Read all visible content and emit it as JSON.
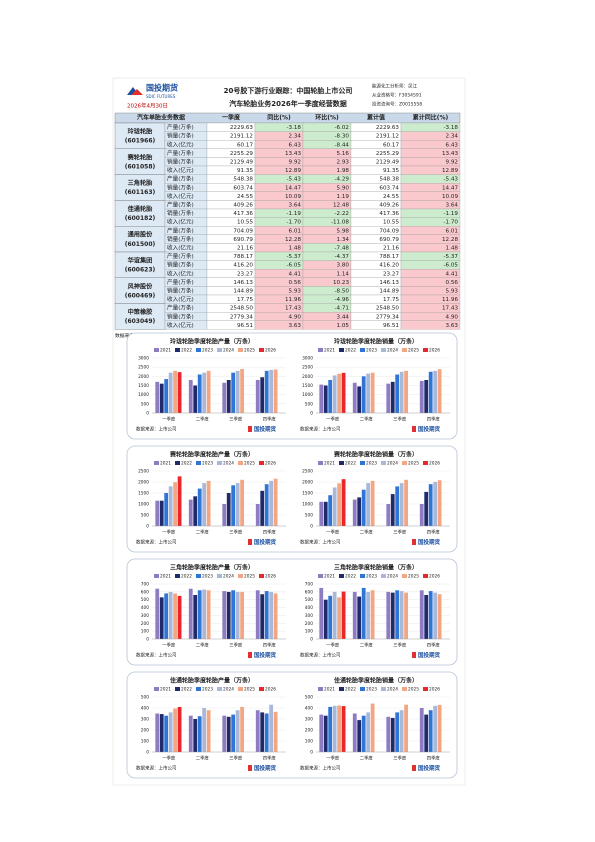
{
  "header": {
    "logo": "国投期货",
    "logo_en": "SDIC FUTURES",
    "date": "2026年4月30日",
    "title": "20号胶下游行业跟踪：中国轮胎上市公司",
    "subtitle": "汽车轮胎业务2026年一季度经营数据",
    "analyst": [
      "能源化工分析师：吴江",
      "从业资格号：F3054591",
      "投资咨询号：Z0015558"
    ]
  },
  "table": {
    "columns": [
      "汽车单胎业务数据",
      "一季度",
      "同比(%)",
      "环比(%)",
      "累计值",
      "累计同比(%)"
    ],
    "companies": [
      {
        "name": "玲珑轮胎",
        "code": "(601966)",
        "rows": [
          [
            "产量(万条)",
            "2229.63",
            "-3.18",
            "-6.02",
            "2229.63",
            "-3.18"
          ],
          [
            "销量(万条)",
            "2191.12",
            "2.34",
            "-8.30",
            "2191.12",
            "2.34"
          ],
          [
            "收入(亿元)",
            "60.17",
            "6.43",
            "-8.44",
            "60.17",
            "6.43"
          ]
        ]
      },
      {
        "name": "赛轮轮胎",
        "code": "(601058)",
        "rows": [
          [
            "产量(万条)",
            "2255.29",
            "13.43",
            "5.16",
            "2255.29",
            "13.43"
          ],
          [
            "销量(万条)",
            "2129.49",
            "9.92",
            "2.93",
            "2129.49",
            "9.92"
          ],
          [
            "收入(亿元)",
            "91.35",
            "12.89",
            "1.98",
            "91.35",
            "12.89"
          ]
        ]
      },
      {
        "name": "三角轮胎",
        "code": "(601163)",
        "rows": [
          [
            "产量(万条)",
            "548.38",
            "-5.43",
            "-4.29",
            "548.38",
            "-5.43"
          ],
          [
            "销量(万条)",
            "603.74",
            "14.47",
            "5.90",
            "603.74",
            "14.47"
          ],
          [
            "收入(亿元)",
            "24.55",
            "10.09",
            "1.19",
            "24.55",
            "10.09"
          ]
        ]
      },
      {
        "name": "佳通轮胎",
        "code": "(600182)",
        "rows": [
          [
            "产量(万条)",
            "409.26",
            "3.64",
            "12.48",
            "409.26",
            "3.64"
          ],
          [
            "销量(万条)",
            "417.36",
            "-1.19",
            "-2.22",
            "417.36",
            "-1.19"
          ],
          [
            "收入(亿元)",
            "10.55",
            "-1.70",
            "-11.08",
            "10.55",
            "-1.70"
          ]
        ]
      },
      {
        "name": "通用股份",
        "code": "(601500)",
        "rows": [
          [
            "产量(万条)",
            "704.09",
            "6.01",
            "5.98",
            "704.09",
            "6.01"
          ],
          [
            "销量(万条)",
            "690.79",
            "12.28",
            "1.34",
            "690.79",
            "12.28"
          ],
          [
            "收入(亿元)",
            "21.16",
            "1.48",
            "-7.48",
            "21.16",
            "1.48"
          ]
        ]
      },
      {
        "name": "华谊集团",
        "code": "(600623)",
        "rows": [
          [
            "产量(万条)",
            "788.17",
            "-5.37",
            "-4.37",
            "788.17",
            "-5.37"
          ],
          [
            "销量(万条)",
            "416.20",
            "-6.05",
            "3.80",
            "416.20",
            "-6.05"
          ],
          [
            "收入(亿元)",
            "23.27",
            "4.41",
            "1.14",
            "23.27",
            "4.41"
          ]
        ]
      },
      {
        "name": "风神股份",
        "code": "(600469)",
        "rows": [
          [
            "产量(万条)",
            "146.13",
            "0.56",
            "10.23",
            "146.13",
            "0.56"
          ],
          [
            "销量(万条)",
            "144.89",
            "5.93",
            "-8.50",
            "144.89",
            "5.93"
          ],
          [
            "收入(亿元)",
            "17.75",
            "11.96",
            "-4.96",
            "17.75",
            "11.96"
          ]
        ]
      },
      {
        "name": "中策橡胶",
        "code": "(603049)",
        "rows": [
          [
            "产量(万条)",
            "2548.50",
            "17.43",
            "-4.71",
            "2548.50",
            "17.43"
          ],
          [
            "销量(万条)",
            "2779.34",
            "4.90",
            "3.44",
            "2779.34",
            "4.90"
          ],
          [
            "收入(亿元)",
            "96.51",
            "3.63",
            "1.05",
            "96.51",
            "3.63"
          ]
        ]
      }
    ],
    "source": "数据来源：公司公告，国投期货"
  },
  "charts": [
    {
      "title": "玲珑轮胎季度轮胎产量（万条）",
      "categories": [
        "一季度",
        "二季度",
        "三季度",
        "四季度"
      ],
      "ylim": [
        0,
        3000
      ],
      "yticks": [
        0,
        500,
        1000,
        1500,
        2000,
        2500,
        3000
      ],
      "series": [
        {
          "name": "2021",
          "color": "#8e7cc3",
          "values": [
            1700,
            1800,
            1650,
            1800
          ]
        },
        {
          "name": "2022",
          "color": "#1f2a6b",
          "values": [
            1600,
            1500,
            1800,
            1950
          ]
        },
        {
          "name": "2023",
          "color": "#2e75d6",
          "values": [
            1850,
            2100,
            2200,
            2300
          ]
        },
        {
          "name": "2024",
          "color": "#a9b8d9",
          "values": [
            2200,
            2200,
            2300,
            2350
          ]
        },
        {
          "name": "2025",
          "color": "#f4a582",
          "values": [
            2300,
            2300,
            2400,
            2370
          ]
        },
        {
          "name": "2026",
          "color": "#e8262b",
          "values": [
            2229.63,
            null,
            null,
            null
          ]
        }
      ],
      "source": "数据来源：上市公司",
      "logo": "国投期货"
    },
    {
      "title": "玲珑轮胎季度轮胎销量（万条）",
      "categories": [
        "一季度",
        "二季度",
        "三季度",
        "四季度"
      ],
      "ylim": [
        0,
        3000
      ],
      "yticks": [
        0,
        500,
        1000,
        1500,
        2000,
        2500,
        3000
      ],
      "series": [
        {
          "name": "2021",
          "color": "#8e7cc3",
          "values": [
            1550,
            1650,
            1600,
            1750
          ]
        },
        {
          "name": "2022",
          "color": "#1f2a6b",
          "values": [
            1500,
            1450,
            1700,
            1800
          ]
        },
        {
          "name": "2023",
          "color": "#2e75d6",
          "values": [
            1800,
            2000,
            2100,
            2250
          ]
        },
        {
          "name": "2024",
          "color": "#a9b8d9",
          "values": [
            2050,
            2150,
            2250,
            2300
          ]
        },
        {
          "name": "2025",
          "color": "#f4a582",
          "values": [
            2140,
            2200,
            2300,
            2390
          ]
        },
        {
          "name": "2026",
          "color": "#e8262b",
          "values": [
            2191.12,
            null,
            null,
            null
          ]
        }
      ],
      "source": "数据来源：上市公司",
      "logo": "国投期货"
    },
    {
      "title": "赛轮轮胎季度轮胎产量（万条）",
      "categories": [
        "一季度",
        "二季度",
        "三季度",
        "四季度"
      ],
      "ylim": [
        0,
        2500
      ],
      "yticks": [
        0,
        500,
        1000,
        1500,
        2000,
        2500
      ],
      "series": [
        {
          "name": "2021",
          "color": "#8e7cc3",
          "values": [
            1150,
            1200,
            1000,
            1000
          ]
        },
        {
          "name": "2022",
          "color": "#1f2a6b",
          "values": [
            1150,
            1350,
            1500,
            1600
          ]
        },
        {
          "name": "2023",
          "color": "#2e75d6",
          "values": [
            1500,
            1700,
            1850,
            1900
          ]
        },
        {
          "name": "2024",
          "color": "#a9b8d9",
          "values": [
            1800,
            1950,
            1950,
            2050
          ]
        },
        {
          "name": "2025",
          "color": "#f4a582",
          "values": [
            1990,
            2050,
            2100,
            2150
          ]
        },
        {
          "name": "2026",
          "color": "#e8262b",
          "values": [
            2255.29,
            null,
            null,
            null
          ]
        }
      ],
      "source": "数据来源：上市公司",
      "logo": "国投期货"
    },
    {
      "title": "赛轮轮胎季度轮胎销量（万条）",
      "categories": [
        "一季度",
        "二季度",
        "三季度",
        "四季度"
      ],
      "ylim": [
        0,
        2500
      ],
      "yticks": [
        0,
        500,
        1000,
        1500,
        2000,
        2500
      ],
      "series": [
        {
          "name": "2021",
          "color": "#8e7cc3",
          "values": [
            1100,
            1200,
            1000,
            1000
          ]
        },
        {
          "name": "2022",
          "color": "#1f2a6b",
          "values": [
            1100,
            1300,
            1450,
            1550
          ]
        },
        {
          "name": "2023",
          "color": "#2e75d6",
          "values": [
            1400,
            1650,
            1800,
            1900
          ]
        },
        {
          "name": "2024",
          "color": "#a9b8d9",
          "values": [
            1750,
            1950,
            1950,
            2000
          ]
        },
        {
          "name": "2025",
          "color": "#f4a582",
          "values": [
            1940,
            2050,
            2100,
            2080
          ]
        },
        {
          "name": "2026",
          "color": "#e8262b",
          "values": [
            2129.49,
            null,
            null,
            null
          ]
        }
      ],
      "source": "数据来源：上市公司",
      "logo": "国投期货"
    },
    {
      "title": "三角轮胎季度轮胎产量（万条）",
      "categories": [
        "一季度",
        "二季度",
        "三季度",
        "四季度"
      ],
      "ylim": [
        0,
        700
      ],
      "yticks": [
        0,
        100,
        200,
        300,
        400,
        500,
        600,
        700
      ],
      "series": [
        {
          "name": "2021",
          "color": "#8e7cc3",
          "values": [
            640,
            640,
            610,
            620
          ]
        },
        {
          "name": "2022",
          "color": "#1f2a6b",
          "values": [
            530,
            560,
            600,
            570
          ]
        },
        {
          "name": "2023",
          "color": "#2e75d6",
          "values": [
            580,
            620,
            620,
            610
          ]
        },
        {
          "name": "2024",
          "color": "#a9b8d9",
          "values": [
            600,
            630,
            600,
            600
          ]
        },
        {
          "name": "2025",
          "color": "#f4a582",
          "values": [
            580,
            620,
            600,
            580
          ]
        },
        {
          "name": "2026",
          "color": "#e8262b",
          "values": [
            548.38,
            null,
            null,
            null
          ]
        }
      ],
      "source": "数据来源：上市公司",
      "logo": "国投期货"
    },
    {
      "title": "三角轮胎季度轮胎销量（万条）",
      "categories": [
        "一季度",
        "二季度",
        "三季度",
        "四季度"
      ],
      "ylim": [
        0,
        700
      ],
      "yticks": [
        0,
        100,
        200,
        300,
        400,
        500,
        600,
        700
      ],
      "series": [
        {
          "name": "2021",
          "color": "#8e7cc3",
          "values": [
            650,
            600,
            600,
            620
          ]
        },
        {
          "name": "2022",
          "color": "#1f2a6b",
          "values": [
            500,
            540,
            590,
            560
          ]
        },
        {
          "name": "2023",
          "color": "#2e75d6",
          "values": [
            550,
            650,
            620,
            610
          ]
        },
        {
          "name": "2024",
          "color": "#a9b8d9",
          "values": [
            600,
            600,
            610,
            590
          ]
        },
        {
          "name": "2025",
          "color": "#f4a582",
          "values": [
            530,
            620,
            590,
            570
          ]
        },
        {
          "name": "2026",
          "color": "#e8262b",
          "values": [
            603.74,
            null,
            null,
            null
          ]
        }
      ],
      "source": "数据来源：上市公司",
      "logo": "国投期货"
    },
    {
      "title": "佳通轮胎季度轮胎产量（万条）",
      "categories": [
        "一季度",
        "二季度",
        "三季度",
        "四季度"
      ],
      "ylim": [
        0,
        500
      ],
      "yticks": [
        0,
        100,
        200,
        300,
        400,
        500
      ],
      "series": [
        {
          "name": "2021",
          "color": "#8e7cc3",
          "values": [
            350,
            330,
            330,
            380
          ]
        },
        {
          "name": "2022",
          "color": "#1f2a6b",
          "values": [
            345,
            300,
            320,
            360
          ]
        },
        {
          "name": "2023",
          "color": "#2e75d6",
          "values": [
            330,
            325,
            340,
            350
          ]
        },
        {
          "name": "2024",
          "color": "#a9b8d9",
          "values": [
            360,
            400,
            380,
            430
          ]
        },
        {
          "name": "2025",
          "color": "#f4a582",
          "values": [
            395,
            380,
            410,
            365
          ]
        },
        {
          "name": "2026",
          "color": "#e8262b",
          "values": [
            409.26,
            null,
            null,
            null
          ]
        }
      ],
      "source": "数据来源：上市公司",
      "logo": "国投期货"
    },
    {
      "title": "佳通轮胎季度轮胎销量（万条）",
      "categories": [
        "一季度",
        "二季度",
        "三季度",
        "四季度"
      ],
      "ylim": [
        0,
        500
      ],
      "yticks": [
        0,
        100,
        200,
        300,
        400,
        500
      ],
      "series": [
        {
          "name": "2021",
          "color": "#8e7cc3",
          "values": [
            340,
            350,
            320,
            400
          ]
        },
        {
          "name": "2022",
          "color": "#1f2a6b",
          "values": [
            330,
            290,
            310,
            340
          ]
        },
        {
          "name": "2023",
          "color": "#2e75d6",
          "values": [
            410,
            330,
            360,
            380
          ]
        },
        {
          "name": "2024",
          "color": "#a9b8d9",
          "values": [
            420,
            360,
            380,
            420
          ]
        },
        {
          "name": "2025",
          "color": "#f4a582",
          "values": [
            422,
            440,
            430,
            427
          ]
        },
        {
          "name": "2026",
          "color": "#e8262b",
          "values": [
            417.36,
            null,
            null,
            null
          ]
        }
      ],
      "source": "数据来源：上市公司",
      "logo": "国投期货"
    }
  ]
}
